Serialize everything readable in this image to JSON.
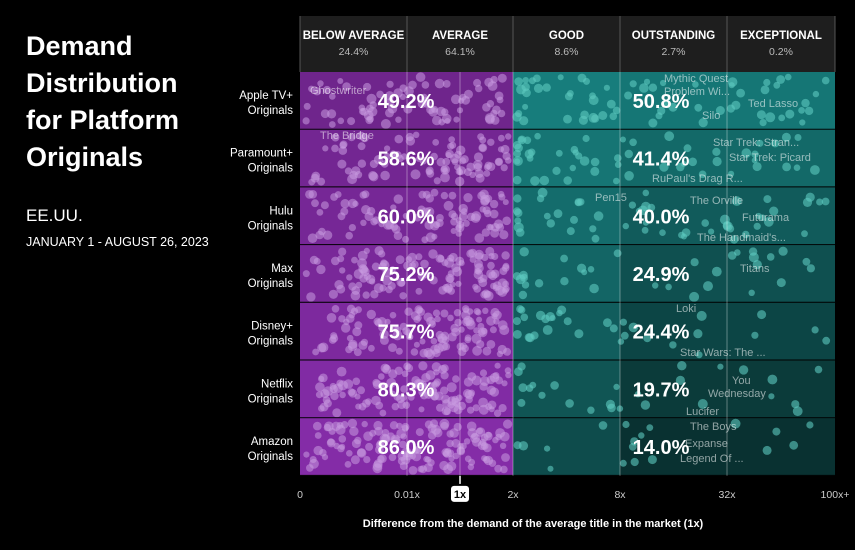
{
  "title": "Demand Distribution for Platform Originals",
  "region": "EE.UU.",
  "date_range": "JANUARY 1 - AUGUST 26, 2023",
  "colors": {
    "below": "#8e2fb4",
    "above": "#1a8b8a",
    "dot_below": "#c99be0",
    "dot_above": "#5ec9bf"
  },
  "chart_data": {
    "type": "bar",
    "orientation": "horizontal-stacked",
    "title": "Demand Distribution for Platform Originals",
    "xlabel": "Difference from the demand of the average title in the market (1x)",
    "x_ticks": [
      "0",
      "0.01x",
      "1x",
      "2x",
      "8x",
      "32x",
      "100x+"
    ],
    "bands": [
      {
        "name": "BELOW AVERAGE",
        "share": "24.4%"
      },
      {
        "name": "AVERAGE",
        "share": "64.1%"
      },
      {
        "name": "GOOD",
        "share": "8.6%"
      },
      {
        "name": "OUTSTANDING",
        "share": "2.7%"
      },
      {
        "name": "EXCEPTIONAL",
        "share": "0.2%"
      }
    ],
    "categories": [
      "Apple TV+ Originals",
      "Paramount+ Originals",
      "Hulu Originals",
      "Max Originals",
      "Disney+ Originals",
      "Netflix Originals",
      "Amazon Originals"
    ],
    "series": [
      {
        "name": "below",
        "values": [
          49.2,
          58.6,
          60.0,
          75.2,
          75.7,
          80.3,
          86.0
        ],
        "labels": [
          "49.2%",
          "58.6%",
          "60.0%",
          "75.2%",
          "75.7%",
          "80.3%",
          "86.0%"
        ]
      },
      {
        "name": "above",
        "values": [
          50.8,
          41.4,
          40.0,
          24.9,
          24.4,
          19.7,
          14.0
        ],
        "labels": [
          "50.8%",
          "41.4%",
          "40.0%",
          "24.9%",
          "24.4%",
          "19.7%",
          "14.0%"
        ]
      }
    ],
    "annotations": [
      {
        "row": 0,
        "labels": [
          "Ghostwriter",
          "Mythic Quest",
          "Problem Wi...",
          "Ted Lasso",
          "Silo"
        ]
      },
      {
        "row": 1,
        "labels": [
          "The Bridge",
          "Star Trek: Stran...",
          "Star Trek: Picard",
          "RuPaul's Drag R..."
        ]
      },
      {
        "row": 2,
        "labels": [
          "Pen15",
          "The Orville",
          "Futurama",
          "The Handmaid's..."
        ]
      },
      {
        "row": 3,
        "labels": [
          "Titans"
        ]
      },
      {
        "row": 4,
        "labels": [
          "Loki",
          "Star Wars: The ..."
        ]
      },
      {
        "row": 5,
        "labels": [
          "You",
          "Wednesday",
          "Lucifer"
        ]
      },
      {
        "row": 6,
        "labels": [
          "The Boys",
          "Expanse",
          "Legend Of ..."
        ]
      }
    ]
  }
}
